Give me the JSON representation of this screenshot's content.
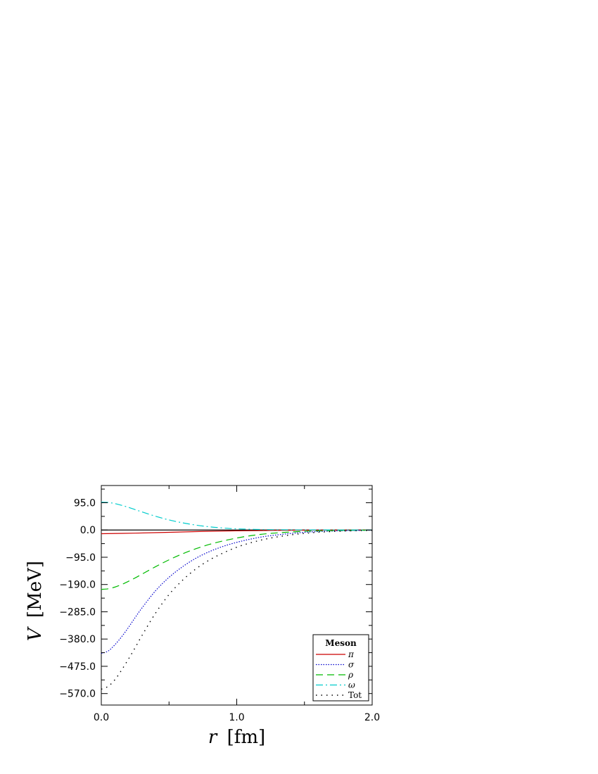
{
  "chart_data": {
    "type": "line",
    "xlabel": {
      "var": "r",
      "unit": "[fm]"
    },
    "ylabel": {
      "var": "V",
      "unit": "[MeV]"
    },
    "xlim": [
      0.0,
      2.0
    ],
    "ylim": [
      -610,
      155
    ],
    "x_ticks": [
      0.0,
      1.0,
      2.0
    ],
    "x_tick_labels": [
      "0.0",
      "1.0",
      "2.0"
    ],
    "x_minor_ticks": [
      0.5,
      1.5
    ],
    "y_ticks": [
      95,
      0,
      -95,
      -190,
      -285,
      -380,
      -475,
      -570
    ],
    "y_tick_labels": [
      "95.0",
      "0.0",
      "−95.0",
      "−190.0",
      "−285.0",
      "−380.0",
      "−475.0",
      "−570.0"
    ],
    "zero_line": true,
    "grid": false,
    "legend": {
      "title": "Meson",
      "position": "bottom-right"
    },
    "series": [
      {
        "name": "π",
        "color": "#cc0000",
        "dash": "",
        "width": 1.2,
        "x": [
          0.0,
          0.25,
          0.5,
          0.75,
          1.0,
          1.25,
          1.5,
          1.75,
          2.0
        ],
        "y": [
          -13,
          -11,
          -8,
          -5,
          -3,
          -1.5,
          -0.7,
          -0.3,
          -0.1
        ]
      },
      {
        "name": "σ",
        "color": "#0000cc",
        "dash": "1.5,2",
        "width": 1.2,
        "x": [
          0.0,
          0.05,
          0.1,
          0.15,
          0.2,
          0.25,
          0.3,
          0.4,
          0.5,
          0.6,
          0.7,
          0.8,
          0.9,
          1.0,
          1.1,
          1.2,
          1.3,
          1.4,
          1.5,
          1.6,
          1.8,
          2.0
        ],
        "y": [
          -430,
          -422,
          -400,
          -372,
          -340,
          -305,
          -272,
          -212,
          -165,
          -128,
          -98,
          -75,
          -57,
          -43,
          -32,
          -23,
          -17,
          -12,
          -8,
          -5.5,
          -2.5,
          -1
        ]
      },
      {
        "name": "ρ",
        "color": "#00bb00",
        "dash": "10,6",
        "width": 1.2,
        "x": [
          0.0,
          0.05,
          0.1,
          0.15,
          0.2,
          0.25,
          0.3,
          0.4,
          0.5,
          0.6,
          0.7,
          0.8,
          0.9,
          1.0,
          1.1,
          1.2,
          1.3,
          1.4,
          1.5,
          1.6,
          1.8,
          2.0
        ],
        "y": [
          -207,
          -205,
          -199,
          -190,
          -179,
          -167,
          -154,
          -128,
          -104,
          -83,
          -65,
          -50,
          -38,
          -28,
          -20,
          -14,
          -10,
          -7,
          -4.5,
          -3,
          -1.2,
          -0.5
        ]
      },
      {
        "name": "ω",
        "color": "#00cccc",
        "dash": "10,4,2,4",
        "width": 1.2,
        "x": [
          0.0,
          0.05,
          0.1,
          0.15,
          0.2,
          0.25,
          0.3,
          0.4,
          0.5,
          0.6,
          0.7,
          0.8,
          0.9,
          1.0,
          1.2,
          1.4,
          1.6,
          1.8,
          2.0
        ],
        "y": [
          97,
          96,
          92,
          86,
          79,
          71,
          63,
          48,
          35,
          25,
          17,
          11,
          7,
          4,
          1.5,
          0.5,
          0.2,
          0.1,
          0
        ]
      },
      {
        "name": "Tot",
        "color": "#000000",
        "dash": "1.5,6",
        "width": 1.4,
        "x": [
          0.0,
          0.05,
          0.1,
          0.15,
          0.2,
          0.25,
          0.3,
          0.4,
          0.5,
          0.6,
          0.7,
          0.8,
          0.9,
          1.0,
          1.1,
          1.2,
          1.3,
          1.4,
          1.5,
          1.6,
          1.8,
          2.0
        ],
        "y": [
          -555,
          -545,
          -522,
          -488,
          -450,
          -410,
          -368,
          -290,
          -225,
          -175,
          -135,
          -104,
          -80,
          -60,
          -45,
          -33,
          -24,
          -17,
          -12,
          -8,
          -3.5,
          -1.5
        ]
      }
    ]
  }
}
